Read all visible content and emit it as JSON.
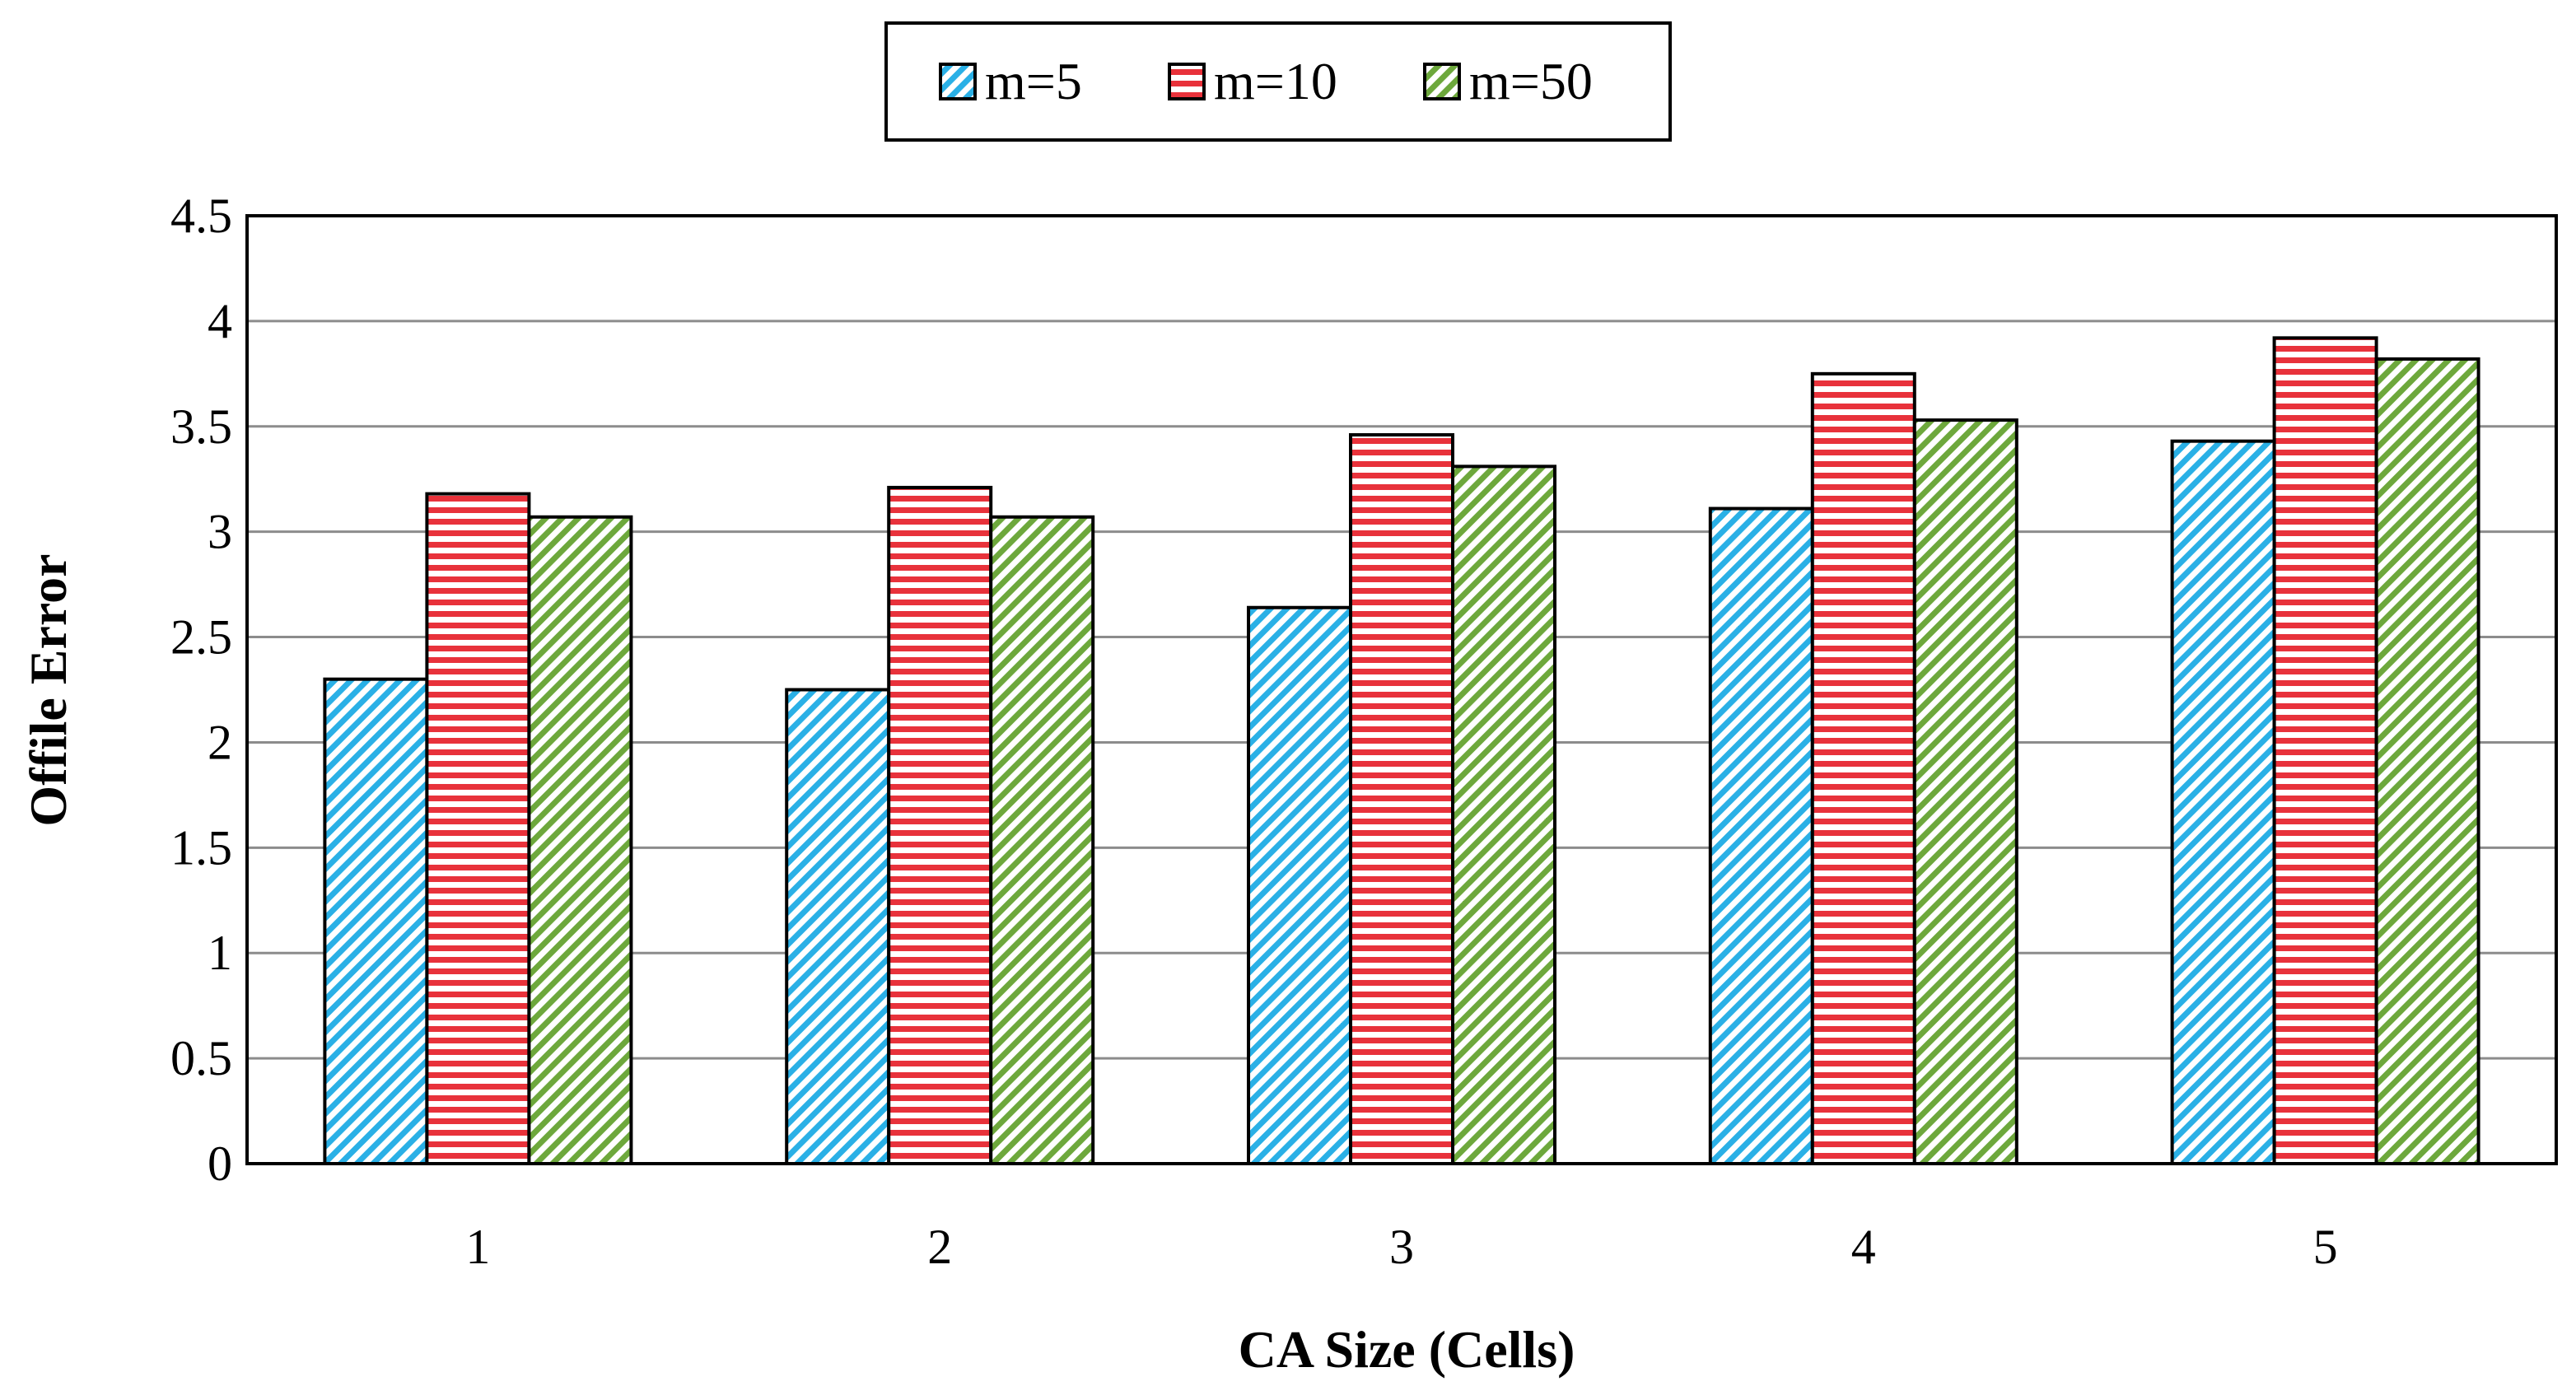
{
  "chart_data": {
    "type": "bar",
    "title": "",
    "xlabel": "CA Size (Cells)",
    "ylabel": "Offile Error",
    "categories": [
      "1",
      "2",
      "3",
      "4",
      "5"
    ],
    "series": [
      {
        "name": "m=5",
        "color": "#2ab0e6",
        "pattern": "diagonal-stripes",
        "values": [
          2.3,
          2.25,
          2.64,
          3.11,
          3.43
        ]
      },
      {
        "name": "m=10",
        "color": "#e8323b",
        "pattern": "horizontal-stripes",
        "values": [
          3.18,
          3.21,
          3.46,
          3.75,
          3.92
        ]
      },
      {
        "name": "m=50",
        "color": "#6da83c",
        "pattern": "diagonal-stripes",
        "values": [
          3.07,
          3.07,
          3.31,
          3.53,
          3.82
        ]
      }
    ],
    "ylim": [
      0,
      4.5
    ],
    "yticks": [
      "0",
      "0.5",
      "1",
      "1.5",
      "2",
      "2.5",
      "3",
      "3.5",
      "4",
      "4.5"
    ],
    "grid": true,
    "legend_position": "top-center"
  }
}
